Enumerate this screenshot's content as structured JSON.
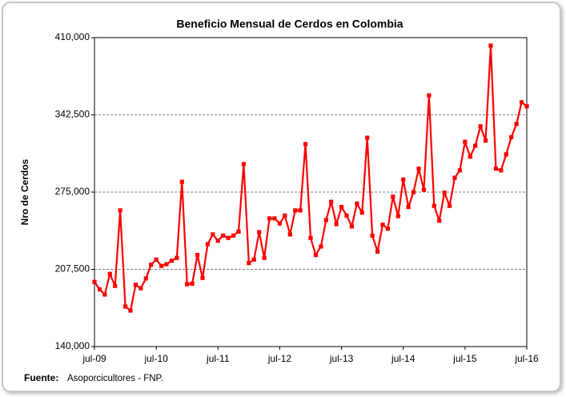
{
  "chart_data": {
    "type": "line",
    "title": "Beneficio Mensual de Cerdos en Colombia",
    "y_label": "Nro de Cerdos",
    "source_label": "Fuente:",
    "source": "Asoporcicultores - FNP.",
    "categories": [
      "jul-09",
      null,
      null,
      null,
      null,
      null,
      null,
      null,
      null,
      null,
      null,
      null,
      "jul-10",
      null,
      null,
      null,
      null,
      null,
      null,
      null,
      null,
      null,
      null,
      null,
      "jul-11",
      null,
      null,
      null,
      null,
      null,
      null,
      null,
      null,
      null,
      null,
      null,
      "jul-12",
      null,
      null,
      null,
      null,
      null,
      null,
      null,
      null,
      null,
      null,
      null,
      "jul-13",
      null,
      null,
      null,
      null,
      null,
      null,
      null,
      null,
      null,
      null,
      null,
      "jul-14",
      null,
      null,
      null,
      null,
      null,
      null,
      null,
      null,
      null,
      null,
      null,
      "jul-15",
      null,
      null,
      null,
      null,
      null,
      null,
      null,
      null,
      null,
      null,
      null,
      "jul-16"
    ],
    "series": [
      {
        "color": "#ff0000",
        "values": [
          196500,
          190000,
          185500,
          203500,
          193000,
          259000,
          175000,
          171500,
          194000,
          191000,
          199500,
          211500,
          216000,
          210500,
          212000,
          215000,
          217500,
          284000,
          194500,
          195000,
          220000,
          200000,
          229500,
          238000,
          232500,
          237000,
          235000,
          237000,
          240500,
          299500,
          213000,
          216000,
          240000,
          217500,
          252000,
          252000,
          247500,
          254500,
          238000,
          259000,
          259000,
          317000,
          235000,
          220000,
          227500,
          250500,
          266500,
          247000,
          262000,
          254500,
          245000,
          265000,
          257000,
          322500,
          237000,
          223000,
          246500,
          243000,
          271000,
          254000,
          286000,
          262000,
          275000,
          295500,
          277000,
          359500,
          263000,
          250000,
          274500,
          263000,
          287500,
          294000,
          319000,
          306000,
          315500,
          332500,
          320000,
          403000,
          295500,
          294000,
          308000,
          323000,
          334500,
          353500,
          350000
        ]
      }
    ],
    "ylim": [
      140000,
      410000
    ],
    "yticks": [
      {
        "value": 140000,
        "label": "140,000"
      },
      {
        "value": 207500,
        "label": "207,500"
      },
      {
        "value": 275000,
        "label": "275,000"
      },
      {
        "value": 342500,
        "label": "342,500"
      },
      {
        "value": 410000,
        "label": "410,000"
      }
    ],
    "grid": true
  }
}
